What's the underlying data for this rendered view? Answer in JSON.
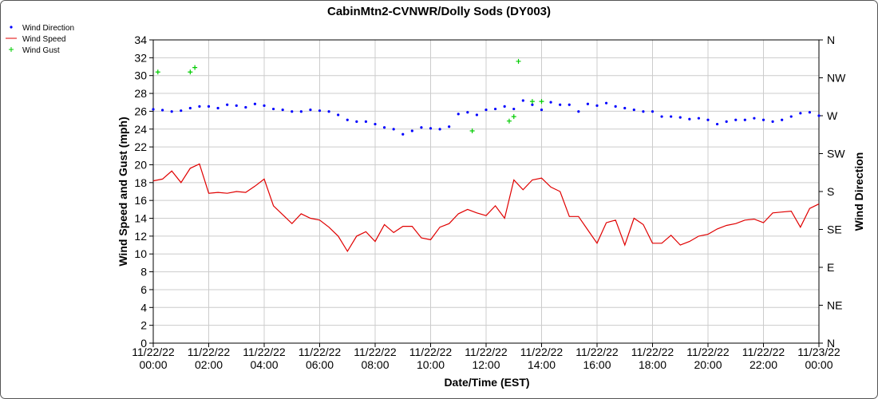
{
  "chart_data": {
    "type": "line",
    "title": "CabinMtn2-CVNWR/Dolly Sods (DY003)",
    "x_label": "Date/Time (EST)",
    "y_label": "Wind Speed and Gust (mph)",
    "y2_label": "Wind Direction",
    "x": [
      "11/22/22 00:00",
      "11/22/22 00:20",
      "11/22/22 00:40",
      "11/22/22 01:00",
      "11/22/22 01:20",
      "11/22/22 01:40",
      "11/22/22 02:00",
      "11/22/22 02:20",
      "11/22/22 02:40",
      "11/22/22 03:00",
      "11/22/22 03:20",
      "11/22/22 03:40",
      "11/22/22 04:00",
      "11/22/22 04:20",
      "11/22/22 04:40",
      "11/22/22 05:00",
      "11/22/22 05:20",
      "11/22/22 05:40",
      "11/22/22 06:00",
      "11/22/22 06:20",
      "11/22/22 06:40",
      "11/22/22 07:00",
      "11/22/22 07:20",
      "11/22/22 07:40",
      "11/22/22 08:00",
      "11/22/22 08:20",
      "11/22/22 08:40",
      "11/22/22 09:00",
      "11/22/22 09:20",
      "11/22/22 09:40",
      "11/22/22 10:00",
      "11/22/22 10:20",
      "11/22/22 10:40",
      "11/22/22 11:00",
      "11/22/22 11:20",
      "11/22/22 11:40",
      "11/22/22 12:00",
      "11/22/22 12:20",
      "11/22/22 12:40",
      "11/22/22 13:00",
      "11/22/22 13:20",
      "11/22/22 13:40",
      "11/22/22 14:00",
      "11/22/22 14:20",
      "11/22/22 14:40",
      "11/22/22 15:00",
      "11/22/22 15:20",
      "11/22/22 15:40",
      "11/22/22 16:00",
      "11/22/22 16:20",
      "11/22/22 16:40",
      "11/22/22 17:00",
      "11/22/22 17:20",
      "11/22/22 17:40",
      "11/22/22 18:00",
      "11/22/22 18:20",
      "11/22/22 18:40",
      "11/22/22 19:00",
      "11/22/22 19:20",
      "11/22/22 19:40",
      "11/22/22 20:00",
      "11/22/22 20:20",
      "11/22/22 20:40",
      "11/22/22 21:00",
      "11/22/22 21:20",
      "11/22/22 21:40",
      "11/22/22 22:00",
      "11/22/22 22:20",
      "11/22/22 22:40",
      "11/22/22 23:00",
      "11/22/22 23:20",
      "11/22/22 23:40",
      "11/23/22 00:00"
    ],
    "series": [
      {
        "name": "Wind Direction",
        "color": "#0000ff",
        "marker": "dot",
        "axis": "y2",
        "values": [
          277.6,
          276.6,
          275,
          276,
          279,
          281,
          281,
          279,
          283,
          282,
          280,
          284,
          282,
          278,
          277,
          275,
          275,
          277,
          276,
          275,
          271,
          265,
          263,
          263,
          260,
          256,
          254,
          248,
          252,
          256,
          255,
          254,
          257,
          272,
          274,
          271,
          277,
          278,
          281,
          278,
          288,
          283,
          277,
          286,
          283,
          283,
          275,
          284,
          282,
          285,
          281,
          279,
          277,
          275,
          275,
          269,
          269,
          268,
          266,
          267,
          265,
          260,
          263,
          265,
          265,
          267,
          265,
          263,
          265,
          269,
          273,
          274,
          270
        ]
      },
      {
        "name": "Wind Speed",
        "color": "#e00000",
        "marker": "line",
        "values": [
          18.2,
          18.4,
          19.3,
          18.0,
          19.6,
          20.1,
          16.8,
          16.9,
          16.8,
          17.0,
          16.9,
          17.6,
          18.4,
          15.4,
          14.4,
          13.4,
          14.5,
          14.0,
          13.8,
          13.0,
          12.0,
          10.3,
          12.0,
          12.5,
          11.4,
          13.3,
          12.4,
          13.1,
          13.1,
          11.8,
          11.6,
          13.0,
          13.4,
          14.5,
          15.0,
          14.6,
          14.3,
          15.4,
          14.0,
          18.3,
          17.2,
          18.3,
          18.5,
          17.5,
          17.0,
          14.2,
          14.2,
          12.7,
          11.2,
          13.5,
          13.8,
          11.0,
          14.0,
          13.3,
          11.2,
          11.2,
          12.1,
          11.0,
          11.4,
          12.0,
          12.2,
          12.8,
          13.2,
          13.4,
          13.8,
          13.9,
          13.5,
          14.6,
          14.7,
          14.8,
          13.0,
          15.1,
          15.6
        ]
      },
      {
        "name": "Wind Gust",
        "color": "#00cc00",
        "marker": "plus",
        "x": [
          "11/22/22 00:10",
          "11/22/22 01:20",
          "11/22/22 01:30",
          "11/22/22 11:30",
          "11/22/22 12:50",
          "11/22/22 13:00",
          "11/22/22 13:10",
          "11/22/22 13:40",
          "11/22/22 14:00"
        ],
        "values": [
          30.4,
          30.4,
          30.9,
          23.8,
          24.9,
          25.4,
          31.6,
          27.1,
          27.1
        ]
      }
    ],
    "xlim": [
      "11/22/22 00:00",
      "11/23/22 00:00"
    ],
    "xticks": [
      "11/22/22 00:00",
      "11/22/22 02:00",
      "11/22/22 04:00",
      "11/22/22 06:00",
      "11/22/22 08:00",
      "11/22/22 10:00",
      "11/22/22 12:00",
      "11/22/22 14:00",
      "11/22/22 16:00",
      "11/22/22 18:00",
      "11/22/22 20:00",
      "11/22/22 22:00",
      "11/23/22 00:00"
    ],
    "ylim": [
      0,
      34
    ],
    "yticks": [
      0,
      2,
      4,
      6,
      8,
      10,
      12,
      14,
      16,
      18,
      20,
      22,
      24,
      26,
      28,
      30,
      32,
      34
    ],
    "y2lim": [
      0,
      360
    ],
    "y2ticks": [
      {
        "value": 0,
        "label": "N"
      },
      {
        "value": 45,
        "label": "NE"
      },
      {
        "value": 90,
        "label": "E"
      },
      {
        "value": 135,
        "label": "SE"
      },
      {
        "value": 180,
        "label": "S"
      },
      {
        "value": 225,
        "label": "SW"
      },
      {
        "value": 270,
        "label": "W"
      },
      {
        "value": 315,
        "label": "NW"
      },
      {
        "value": 360,
        "label": "N"
      }
    ],
    "grid": true,
    "legend": "top-left"
  }
}
